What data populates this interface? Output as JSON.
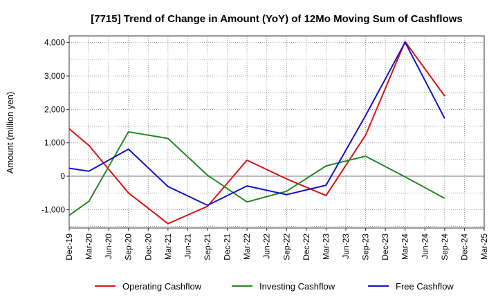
{
  "chart_data": {
    "type": "line",
    "title": "[7715]  Trend of Change in Amount (YoY) of 12Mo Moving Sum of Cashflows",
    "xlabel": "",
    "ylabel": "Amount (million yen)",
    "ylim": [
      -1550,
      4200
    ],
    "yticks": [
      -1000,
      0,
      1000,
      2000,
      3000,
      4000
    ],
    "ytick_labels": [
      "-1,000",
      "0",
      "1,000",
      "2,000",
      "3,000",
      "4,000"
    ],
    "grid": true,
    "legend_position": "bottom",
    "categories": [
      "Dec-19",
      "Mar-20",
      "Jun-20",
      "Sep-20",
      "Dec-20",
      "Mar-21",
      "Jun-21",
      "Sep-21",
      "Dec-21",
      "Mar-22",
      "Jun-22",
      "Sep-22",
      "Dec-22",
      "Mar-23",
      "Jun-23",
      "Sep-23",
      "Dec-23",
      "Mar-24",
      "Jun-24",
      "Sep-24",
      "Dec-24",
      "Mar-25"
    ],
    "series": [
      {
        "name": "Operating Cashflow",
        "color": "#dd1111",
        "values": [
          1420,
          920,
          null,
          -500,
          null,
          -1420,
          null,
          -900,
          null,
          480,
          null,
          -80,
          null,
          -580,
          null,
          1230,
          null,
          4030,
          null,
          2400,
          null,
          null
        ]
      },
      {
        "name": "Investing Cashflow",
        "color": "#228822",
        "values": [
          -1170,
          -750,
          null,
          1330,
          null,
          1130,
          null,
          30,
          null,
          -770,
          null,
          -450,
          null,
          310,
          null,
          600,
          null,
          -20,
          null,
          -660,
          null,
          null
        ]
      },
      {
        "name": "Free Cashflow",
        "color": "#1111cc",
        "values": [
          240,
          150,
          null,
          810,
          null,
          -310,
          null,
          -870,
          null,
          -290,
          null,
          -550,
          null,
          -270,
          null,
          1820,
          null,
          4010,
          null,
          1730,
          null,
          null
        ]
      }
    ]
  }
}
